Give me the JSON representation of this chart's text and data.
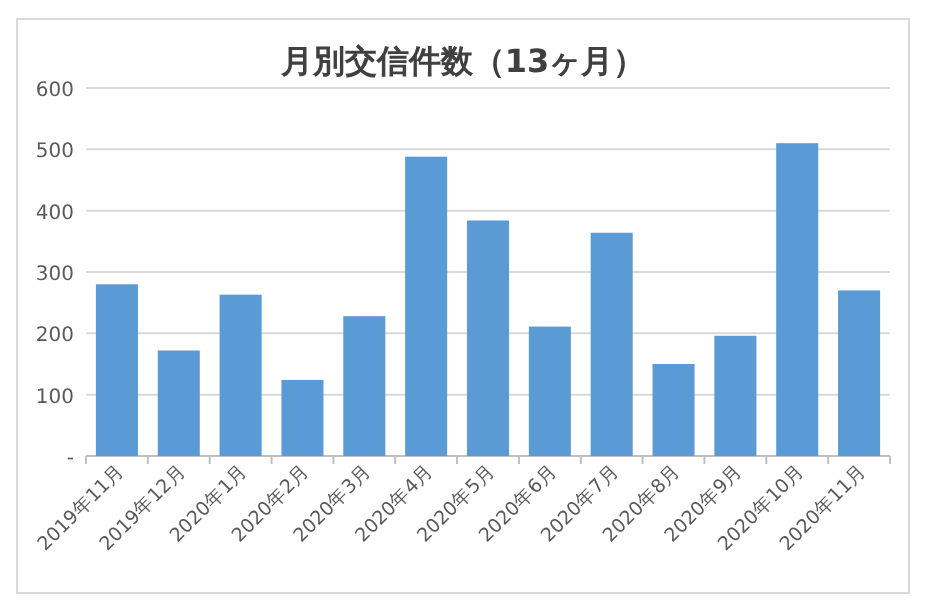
{
  "chart_data": {
    "type": "bar",
    "title": "月別交信件数（13ヶ月）",
    "categories": [
      "2019年11月",
      "2019年12月",
      "2020年1月",
      "2020年2月",
      "2020年3月",
      "2020年4月",
      "2020年5月",
      "2020年6月",
      "2020年7月",
      "2020年8月",
      "2020年9月",
      "2020年10月",
      "2020年11月"
    ],
    "values": [
      280,
      172,
      263,
      124,
      228,
      488,
      384,
      211,
      364,
      150,
      196,
      510,
      270
    ],
    "color": "#5b9bd5",
    "ylim": [
      0,
      600
    ],
    "yticks": [
      {
        "value": 0,
        "label": "-"
      },
      100,
      200,
      300,
      400,
      500,
      600
    ],
    "grid": "y"
  }
}
